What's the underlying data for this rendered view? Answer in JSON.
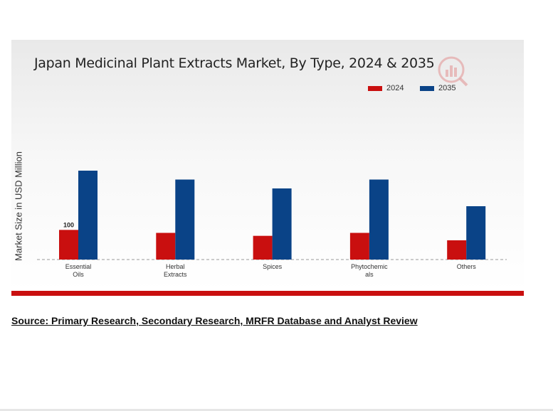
{
  "chart_data": {
    "type": "bar",
    "title": "Japan Medicinal Plant Extracts Market, By Type, 2024 & 2035",
    "ylabel": "Market Size in USD Million",
    "xlabel": "",
    "categories": [
      [
        "Essential",
        "Oils"
      ],
      [
        "Herbal",
        "Extracts"
      ],
      [
        "Spices"
      ],
      [
        "Phytochemic",
        "als"
      ],
      [
        "Others"
      ]
    ],
    "series": [
      {
        "name": "2024",
        "color": "#c90f0f",
        "values": [
          100,
          90,
          80,
          90,
          65
        ]
      },
      {
        "name": "2035",
        "color": "#0a4387",
        "values": [
          300,
          270,
          240,
          270,
          180
        ]
      }
    ],
    "data_labels": [
      {
        "series": 0,
        "index": 0,
        "text": "100"
      }
    ],
    "ylim": [
      0,
      340
    ],
    "grid": false,
    "legend": "top-right"
  },
  "source_text": "Source: Primary Research, Secondary Research, MRFR Database and Analyst Review",
  "colors": {
    "accent_red": "#c90f0f",
    "accent_blue": "#0a4387"
  }
}
